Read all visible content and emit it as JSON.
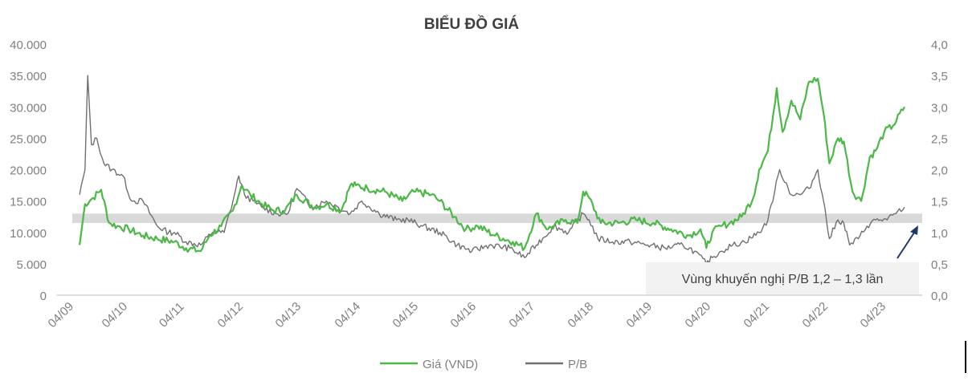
{
  "chart_data": {
    "type": "line",
    "title": "BIỂU ĐỒ GIÁ",
    "x_tick_labels": [
      "04/09",
      "04/10",
      "04/11",
      "04/12",
      "04/13",
      "04/14",
      "04/15",
      "04/16",
      "04/17",
      "04/18",
      "04/19",
      "04/20",
      "04/21",
      "04/22",
      "04/23"
    ],
    "y_left": {
      "ylim": [
        0,
        40000
      ],
      "tick_labels": [
        "0",
        "5.000",
        "10.000",
        "15.000",
        "20.000",
        "25.000",
        "30.000",
        "35.000",
        "40.000"
      ]
    },
    "y_right": {
      "ylim": [
        0,
        4.0
      ],
      "tick_labels": [
        "0,0",
        "0,5",
        "1,0",
        "1,5",
        "2,0",
        "2,5",
        "3,0",
        "3,5",
        "4,0"
      ]
    },
    "grid": false,
    "legend_position": "bottom",
    "band": {
      "axis": "right",
      "from": 1.15,
      "to": 1.3
    },
    "annotation": {
      "text": "Vùng khuyến nghị P/B 1,2 – 1,3 lần"
    },
    "series": [
      {
        "name": "Giá (VND)",
        "axis": "left",
        "color": "#4cb848",
        "x": [
          2009.3,
          2009.4,
          2009.55,
          2009.7,
          2009.85,
          2010.0,
          2010.2,
          2010.45,
          2010.7,
          2011.0,
          2011.2,
          2011.45,
          2011.6,
          2011.8,
          2012.0,
          2012.15,
          2012.3,
          2012.5,
          2012.7,
          2012.9,
          2013.1,
          2013.4,
          2013.6,
          2013.85,
          2014.0,
          2014.1,
          2014.3,
          2014.6,
          2014.9,
          2015.1,
          2015.4,
          2015.55,
          2015.8,
          2016.0,
          2016.2,
          2016.5,
          2016.8,
          2017.0,
          2017.2,
          2017.4,
          2017.7,
          2017.9,
          2018.0,
          2018.1,
          2018.3,
          2018.6,
          2018.9,
          2019.2,
          2019.5,
          2019.8,
          2020.0,
          2020.1,
          2020.2,
          2020.35,
          2020.5,
          2020.7,
          2020.9,
          2021.0,
          2021.15,
          2021.3,
          2021.4,
          2021.55,
          2021.7,
          2021.85,
          2022.0,
          2022.1,
          2022.2,
          2022.35,
          2022.45,
          2022.6,
          2022.75,
          2022.9,
          2023.0,
          2023.15,
          2023.3,
          2023.5
        ],
        "values": [
          8000,
          14500,
          15500,
          16800,
          11500,
          11000,
          10500,
          9500,
          9000,
          8500,
          7500,
          7000,
          9500,
          11000,
          13500,
          17500,
          16000,
          14500,
          13500,
          13500,
          16000,
          14000,
          14500,
          13500,
          17500,
          17500,
          17000,
          16500,
          15000,
          16500,
          16000,
          15000,
          12500,
          10500,
          11000,
          9500,
          8500,
          7500,
          13000,
          10500,
          12000,
          11500,
          16500,
          15500,
          11500,
          11500,
          12000,
          11500,
          10500,
          9500,
          10500,
          7500,
          10000,
          11000,
          11500,
          12500,
          15500,
          20000,
          23000,
          33000,
          26000,
          31000,
          28000,
          34000,
          34500,
          29000,
          21000,
          25000,
          24500,
          16500,
          15000,
          22000,
          23000,
          26000,
          27000,
          30000
        ]
      },
      {
        "name": "P/B",
        "axis": "right",
        "color": "#707070",
        "x": [
          2009.3,
          2009.4,
          2009.45,
          2009.52,
          2009.62,
          2009.75,
          2009.9,
          2010.1,
          2010.25,
          2010.3,
          2010.45,
          2010.7,
          2010.9,
          2011.0,
          2011.2,
          2011.45,
          2011.65,
          2011.85,
          2012.0,
          2012.1,
          2012.2,
          2012.35,
          2012.5,
          2012.75,
          2012.95,
          2013.1,
          2013.35,
          2013.6,
          2013.8,
          2014.0,
          2014.2,
          2014.5,
          2014.8,
          2015.0,
          2015.25,
          2015.55,
          2015.85,
          2016.1,
          2016.4,
          2016.75,
          2017.0,
          2017.2,
          2017.5,
          2017.75,
          2018.0,
          2018.1,
          2018.25,
          2018.5,
          2018.8,
          2019.1,
          2019.4,
          2019.7,
          2019.9,
          2020.1,
          2020.2,
          2020.35,
          2020.55,
          2020.75,
          2021.0,
          2021.15,
          2021.35,
          2021.55,
          2021.7,
          2021.85,
          2022.0,
          2022.1,
          2022.2,
          2022.35,
          2022.45,
          2022.55,
          2022.7,
          2022.85,
          2023.0,
          2023.2,
          2023.35,
          2023.5
        ],
        "values": [
          1.6,
          2.0,
          3.5,
          2.4,
          2.5,
          2.1,
          2.0,
          1.9,
          1.5,
          1.5,
          1.5,
          1.1,
          1.0,
          1.0,
          0.85,
          0.8,
          1.0,
          1.0,
          1.5,
          1.9,
          1.6,
          1.5,
          1.4,
          1.3,
          1.3,
          1.7,
          1.4,
          1.5,
          1.4,
          1.3,
          1.5,
          1.3,
          1.2,
          1.2,
          1.1,
          1.0,
          0.8,
          0.7,
          0.8,
          0.75,
          0.6,
          0.8,
          1.1,
          1.0,
          1.3,
          1.2,
          0.9,
          0.85,
          0.85,
          0.8,
          0.75,
          0.8,
          0.7,
          0.5,
          0.6,
          0.7,
          0.8,
          0.85,
          1.0,
          1.2,
          2.0,
          1.6,
          1.6,
          1.7,
          2.0,
          1.5,
          0.9,
          1.2,
          1.15,
          0.8,
          0.9,
          1.1,
          1.2,
          1.2,
          1.3,
          1.4
        ]
      }
    ]
  }
}
